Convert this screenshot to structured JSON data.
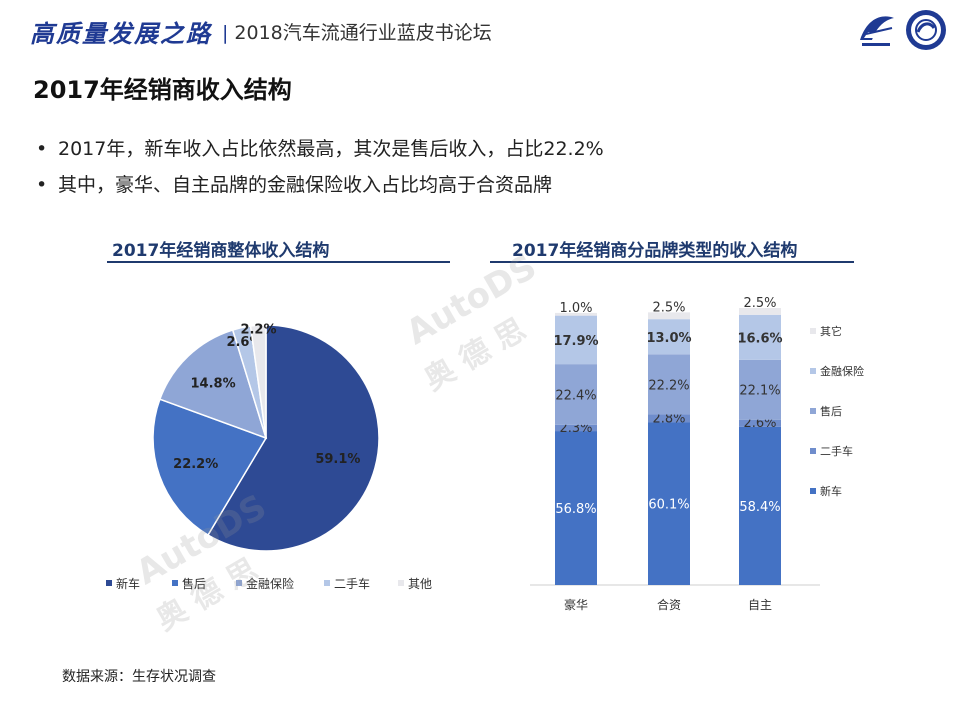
{
  "header": {
    "brand": "高质量发展之路",
    "forum": "2018汽车流通行业蓝皮书论坛",
    "separator": "|",
    "logo1_icon": "cada-logo-icon",
    "logo2_icon": "association-seal-icon"
  },
  "page_title": "2017年经销商收入结构",
  "bullets": [
    "2017年，新车收入占比依然最高，其次是售后收入，占比22.2%",
    "其中，豪华、自主品牌的金融保险收入占比均高于合资品牌"
  ],
  "bullet_char": "•",
  "watermark": {
    "latin": "AutoDS",
    "cjk": "奥 德 思"
  },
  "source": "数据来源：生存状况调查",
  "chart_data": [
    {
      "type": "pie",
      "title": "2017年经销商整体收入结构",
      "categories": [
        "新车",
        "售后",
        "金融保险",
        "二手车",
        "其他"
      ],
      "values": [
        59.1,
        22.2,
        14.8,
        2.6,
        2.2
      ],
      "labels": [
        "59.1%",
        "22.2%",
        "14.8%",
        "2.6%",
        "2.2%"
      ],
      "colors": [
        "#2e4a94",
        "#4472c4",
        "#8fa6d6",
        "#b4c7e7",
        "#e8e8ec"
      ],
      "legend": "bottom"
    },
    {
      "type": "bar",
      "stacked": true,
      "title": "2017年经销商分品牌类型的收入结构",
      "categories": [
        "豪华",
        "合资",
        "自主"
      ],
      "series": [
        {
          "name": "新车",
          "values": [
            56.8,
            60.1,
            58.4
          ],
          "labels": [
            "56.8%",
            "60.1%",
            "58.4%"
          ],
          "color": "#4472c4"
        },
        {
          "name": "二手车",
          "values": [
            2.3,
            2.8,
            2.6
          ],
          "labels": [
            "2.3%",
            "2.8%",
            "2.6%"
          ],
          "color": "#6f8dcc"
        },
        {
          "name": "售后",
          "values": [
            22.4,
            22.2,
            22.1
          ],
          "labels": [
            "22.4%",
            "22.2%",
            "22.1%"
          ],
          "color": "#8fa6d6"
        },
        {
          "name": "金融保险",
          "values": [
            17.9,
            13.0,
            16.6
          ],
          "labels": [
            "17.9%",
            "13.0%",
            "16.6%"
          ],
          "color": "#b4c7e7"
        },
        {
          "name": "其它",
          "values": [
            1.0,
            2.5,
            2.5
          ],
          "labels": [
            "1.0%",
            "2.5%",
            "2.5%"
          ],
          "color": "#e8e8ec"
        }
      ],
      "ylim": [
        0,
        100
      ],
      "legend": "right"
    }
  ]
}
